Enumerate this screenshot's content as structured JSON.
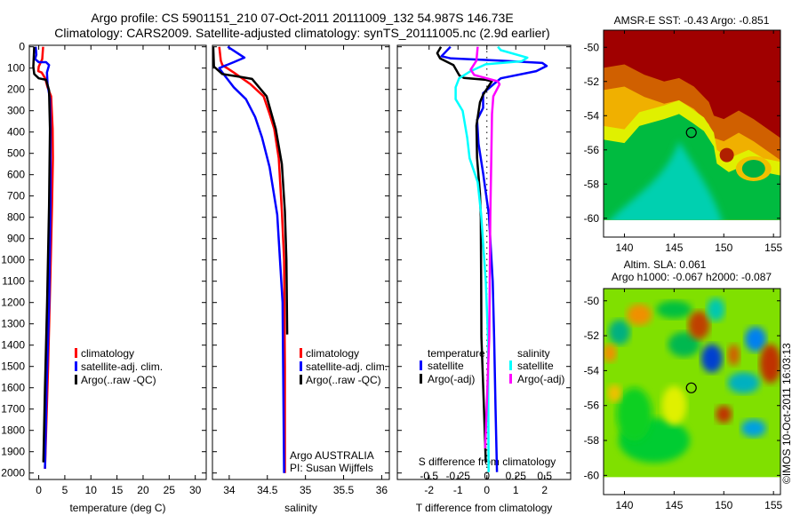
{
  "title_line1": "Argo profile: CS 5901151_210 07-Oct-2011 20111009_132 54.987S 146.73E",
  "title_line2": "Climatology: CARS2009. Satellite-adjusted climatology: synTS_20111005.nc (2.9d earlier)",
  "credit": "©IMOS 10-Oct-2011 16:03:13",
  "colors": {
    "climatology": "#ff0000",
    "satellite": "#0000ff",
    "argo": "#000000",
    "sal_satellite": "#00ffff",
    "sal_argo": "#ff00ff"
  },
  "chart_data": [
    {
      "id": "temperature",
      "type": "line",
      "xlabel": "temperature (deg C)",
      "ylabel": "",
      "xlim": [
        -1.8,
        32.1
      ],
      "ylim": [
        2030,
        0
      ],
      "xticks": [
        0,
        5,
        10,
        15,
        20,
        25,
        30
      ],
      "xtick_labels": [
        "0",
        "5",
        "10",
        "15",
        "20",
        "25",
        "30"
      ],
      "yticks": [
        0,
        100,
        200,
        300,
        400,
        500,
        600,
        700,
        800,
        900,
        1000,
        1100,
        1200,
        1300,
        1400,
        1500,
        1600,
        1700,
        1800,
        1900,
        2000
      ],
      "ytick_labels": [
        "0",
        "100",
        "200",
        "300",
        "400",
        "500",
        "600",
        "700",
        "800",
        "900",
        "1000",
        "1100",
        "1200",
        "1300",
        "1400",
        "1500",
        "1600",
        "1700",
        "1800",
        "1900",
        "2000"
      ],
      "legend": [
        {
          "label": "climatology",
          "color": "#ff0000"
        },
        {
          "label": "satellite-adj. clim.",
          "color": "#0000ff"
        },
        {
          "label": "Argo(..raw -QC)",
          "color": "#000000"
        }
      ],
      "series": [
        {
          "name": "climatology",
          "color": "#ff0000",
          "points": [
            [
              0.84,
              0
            ],
            [
              0.67,
              58
            ],
            [
              0,
              93
            ],
            [
              -0.1,
              114
            ],
            [
              0.56,
              121
            ],
            [
              1.24,
              148
            ],
            [
              1.69,
              190
            ],
            [
              2.37,
              232
            ],
            [
              2.66,
              385
            ],
            [
              2.71,
              522
            ],
            [
              2.54,
              745
            ],
            [
              2.3,
              1000
            ],
            [
              1.8,
              1500
            ],
            [
              1.2,
              1980
            ]
          ]
        },
        {
          "name": "satellite-adj. clim.",
          "color": "#0000ff",
          "points": [
            [
              -0.58,
              0
            ],
            [
              -0.46,
              37
            ],
            [
              -0.7,
              58
            ],
            [
              0,
              72
            ],
            [
              1.41,
              72
            ],
            [
              1.98,
              86
            ],
            [
              1.58,
              121
            ],
            [
              1.69,
              176
            ],
            [
              2.15,
              246
            ],
            [
              2.26,
              385
            ],
            [
              2.26,
              745
            ],
            [
              2.0,
              1200
            ],
            [
              1.5,
              1600
            ],
            [
              1.2,
              1980
            ]
          ]
        },
        {
          "name": "Argo(..raw -QC)",
          "color": "#000000",
          "points": [
            [
              -0.87,
              0
            ],
            [
              -1.04,
              93
            ],
            [
              -0.87,
              128
            ],
            [
              0,
              148
            ],
            [
              1.41,
              155
            ],
            [
              1.98,
              204
            ],
            [
              2.15,
              385
            ],
            [
              1.98,
              745
            ],
            [
              1.6,
              1200
            ],
            [
              1.2,
              1600
            ],
            [
              0.9,
              1950
            ]
          ]
        }
      ]
    },
    {
      "id": "salinity",
      "type": "line",
      "xlabel": "salinity",
      "xlim": [
        33.78,
        36.1
      ],
      "ylim": [
        2030,
        0
      ],
      "xticks": [
        34,
        34.5,
        35,
        35.5,
        36
      ],
      "xtick_labels": [
        "34",
        "34.5",
        "35",
        "35.5",
        "36"
      ],
      "legend": [
        {
          "label": "climatology",
          "color": "#ff0000"
        },
        {
          "label": "satellite-adj. clim.",
          "color": "#0000ff"
        },
        {
          "label": "Argo(..raw -QC)",
          "color": "#000000"
        }
      ],
      "annotations": [
        "Argo AUSTRALIA",
        "PI: Susan Wijffels"
      ],
      "series": [
        {
          "name": "climatology",
          "color": "#ff0000",
          "points": [
            [
              33.87,
              0
            ],
            [
              33.89,
              65
            ],
            [
              33.91,
              86
            ],
            [
              34.06,
              121
            ],
            [
              34.28,
              176
            ],
            [
              34.45,
              232
            ],
            [
              34.53,
              315
            ],
            [
              34.59,
              385
            ],
            [
              34.65,
              523
            ],
            [
              34.69,
              773
            ],
            [
              34.72,
              1000
            ],
            [
              34.73,
              1500
            ],
            [
              34.73,
              2000
            ]
          ]
        },
        {
          "name": "satellite-adj. clim.",
          "color": "#0000ff",
          "points": [
            [
              33.98,
              0
            ],
            [
              34.2,
              51
            ],
            [
              34.06,
              72
            ],
            [
              33.87,
              100
            ],
            [
              33.91,
              121
            ],
            [
              34.06,
              190
            ],
            [
              34.22,
              246
            ],
            [
              34.34,
              329
            ],
            [
              34.43,
              426
            ],
            [
              34.53,
              565
            ],
            [
              34.63,
              788
            ],
            [
              34.7,
              1200
            ],
            [
              34.72,
              2000
            ]
          ]
        },
        {
          "name": "Argo(..raw -QC)",
          "color": "#000000",
          "points": [
            [
              33.79,
              0
            ],
            [
              33.8,
              93
            ],
            [
              33.91,
              128
            ],
            [
              34.14,
              141
            ],
            [
              34.3,
              151
            ],
            [
              34.49,
              232
            ],
            [
              34.61,
              385
            ],
            [
              34.69,
              551
            ],
            [
              34.73,
              773
            ],
            [
              34.75,
              1000
            ],
            [
              34.76,
              1350
            ]
          ]
        }
      ]
    },
    {
      "id": "difference",
      "type": "line",
      "xlabel": "T difference from climatology",
      "x2label": "S difference from climatology",
      "xlim": [
        -3.1,
        2.9
      ],
      "x2lim": [
        -0.775,
        0.725
      ],
      "ylim": [
        2030,
        0
      ],
      "xticks": [
        -2,
        -1,
        0,
        1,
        2
      ],
      "xtick_labels": [
        "-2",
        "-1",
        "0",
        "1",
        "2"
      ],
      "x2ticks": [
        -0.5,
        -0.25,
        0,
        0.25,
        0.5
      ],
      "x2tick_labels": [
        "-0.5",
        "-0.25",
        "0",
        "0.25",
        "0.5"
      ],
      "legend_temperature_title": "temperature",
      "legend_salinity_title": "salinity",
      "legend": [
        {
          "group": "temperature",
          "label": "satellite",
          "color": "#0000ff"
        },
        {
          "group": "temperature",
          "label": "Argo(-adj)",
          "color": "#000000"
        },
        {
          "group": "salinity",
          "label": "satellite",
          "color": "#00ffff"
        },
        {
          "group": "salinity",
          "label": "Argo(-adj)",
          "color": "#ff00ff"
        }
      ],
      "series": [
        {
          "name": "T satellite",
          "axis": "T",
          "color": "#0000ff",
          "points": [
            [
              -1.26,
              0
            ],
            [
              -1.57,
              44
            ],
            [
              -1.26,
              54
            ],
            [
              0.43,
              65
            ],
            [
              1.92,
              76
            ],
            [
              2.07,
              90
            ],
            [
              1.71,
              114
            ],
            [
              0.48,
              148
            ],
            [
              0.23,
              176
            ],
            [
              -0.13,
              218
            ],
            [
              -0.13,
              287
            ],
            [
              -0.34,
              343
            ],
            [
              -0.29,
              454
            ],
            [
              -0.13,
              593
            ],
            [
              0.07,
              788
            ],
            [
              0.2,
              1100
            ],
            [
              0.25,
              1364
            ],
            [
              0.3,
              1700
            ],
            [
              0.35,
              1996
            ]
          ]
        },
        {
          "name": "T Argo(-adj)",
          "axis": "T",
          "color": "#000000",
          "points": [
            [
              -1.59,
              0
            ],
            [
              -1.72,
              30
            ],
            [
              -1.62,
              54
            ],
            [
              -1.16,
              86
            ],
            [
              -0.95,
              135
            ],
            [
              -0.8,
              146
            ],
            [
              -0.03,
              155
            ],
            [
              0.17,
              162
            ],
            [
              -0.13,
              225
            ],
            [
              -0.24,
              260
            ],
            [
              -0.36,
              370
            ],
            [
              -0.34,
              522
            ],
            [
              -0.24,
              690
            ],
            [
              -0.21,
              800
            ],
            [
              -0.2,
              1100
            ],
            [
              -0.19,
              1364
            ],
            [
              -0.1,
              1700
            ],
            [
              -0.04,
              1950
            ]
          ]
        },
        {
          "name": "S satellite",
          "axis": "S",
          "color": "#00ffff",
          "points": [
            [
              0.095,
              0
            ],
            [
              0.12,
              16
            ],
            [
              0.35,
              51
            ],
            [
              0.3,
              68
            ],
            [
              -0.01,
              82
            ],
            [
              -0.14,
              114
            ],
            [
              -0.24,
              148
            ],
            [
              -0.27,
              190
            ],
            [
              -0.27,
              246
            ],
            [
              -0.21,
              301
            ],
            [
              -0.17,
              426
            ],
            [
              -0.15,
              523
            ],
            [
              -0.08,
              635
            ],
            [
              -0.05,
              788
            ],
            [
              -0.01,
              1100
            ],
            [
              0.01,
              1364
            ],
            [
              0.015,
              1996
            ]
          ]
        },
        {
          "name": "S Argo(-adj)",
          "axis": "S",
          "color": "#ff00ff",
          "points": [
            [
              -0.08,
              0
            ],
            [
              -0.09,
              65
            ],
            [
              -0.14,
              107
            ],
            [
              -0.11,
              132
            ],
            [
              0.095,
              162
            ],
            [
              0.11,
              176
            ],
            [
              0.056,
              232
            ],
            [
              0.044,
              315
            ],
            [
              0.038,
              522
            ],
            [
              0.03,
              788
            ],
            [
              0.02,
              1364
            ],
            [
              -0.015,
              1885
            ]
          ]
        }
      ]
    },
    {
      "id": "sst_map",
      "type": "heatmap",
      "title": "AMSR-E SST: -0.43 Argo: -0.851",
      "xlim": [
        137.9,
        155.7
      ],
      "ylim": [
        -61.1,
        -49
      ],
      "xticks": [
        140,
        145,
        150,
        155
      ],
      "xtick_labels": [
        "140",
        "145",
        "150",
        "155"
      ],
      "yticks": [
        -50,
        -52,
        -54,
        -56,
        -58,
        -60
      ],
      "ytick_labels": [
        "-50",
        "-52",
        "-54",
        "-56",
        "-58",
        "-60"
      ],
      "marker": {
        "lon": 146.73,
        "lat": -54.987
      }
    },
    {
      "id": "sla_map",
      "type": "heatmap",
      "title": "Altim. SLA: 0.061",
      "subtitle": "Argo h1000: -0.067 h2000: -0.087",
      "xlim": [
        137.9,
        155.7
      ],
      "ylim": [
        -61.1,
        -49.3
      ],
      "xticks": [
        140,
        145,
        150,
        155
      ],
      "xtick_labels": [
        "140",
        "145",
        "150",
        "155"
      ],
      "yticks": [
        -50,
        -52,
        -54,
        -56,
        -58,
        -60
      ],
      "ytick_labels": [
        "-50",
        "-52",
        "-54",
        "-56",
        "-58",
        "-60"
      ],
      "marker": {
        "lon": 146.73,
        "lat": -54.987
      }
    }
  ]
}
